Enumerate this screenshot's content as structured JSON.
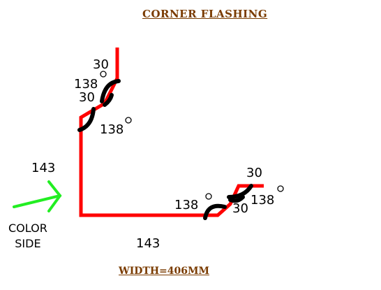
{
  "title": "CORNER  FLASHING",
  "width_note": "WIDTH=406MM",
  "color_side": {
    "line1": "COLOR",
    "line2": "SIDE"
  },
  "labels": {
    "top_fold_length": "30",
    "top_angle_1": "138",
    "top_hem_length": "30",
    "top_angle_2": "138",
    "vertical_length": "143",
    "horizontal_length": "143",
    "right_angle_1": "138",
    "right_hem_length": "30",
    "right_fold_length": "30",
    "right_angle_2": "138"
  },
  "colors": {
    "title": "#7a3b00",
    "width_note": "#7a3b00",
    "profile": "#ff0000",
    "angle_arc": "#000000",
    "arrow": "#22ee22"
  },
  "icons": {
    "arrow": "right-arrow-icon",
    "degree": "degree-symbol"
  }
}
